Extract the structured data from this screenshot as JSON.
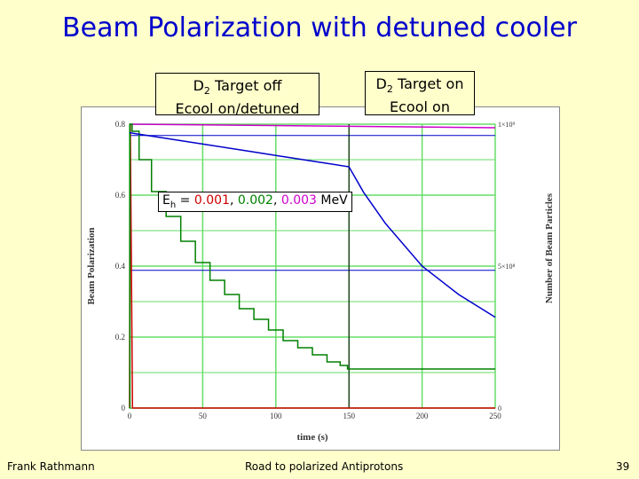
{
  "slide": {
    "title": "Beam Polarization with detuned cooler",
    "box_off_line1_pre": "D",
    "box_off_line1_sub": "2",
    "box_off_line1_post": " Target off",
    "box_off_line2": "Ecool on/detuned",
    "box_on_line1_pre": "D",
    "box_on_line1_sub": "2",
    "box_on_line1_post": " Target on",
    "box_on_line2": "Ecool on",
    "footer_left": "Frank Rathmann",
    "footer_center": "Road to polarized Antiprotons",
    "page_number": "39"
  },
  "chart_data": {
    "type": "line",
    "xlabel": "time (s)",
    "ylabel_left": "Beam Polarization",
    "ylabel_right": "Number of Beam Particles",
    "xlim": [
      0,
      250
    ],
    "ylim_left": [
      0,
      0.8
    ],
    "ylim_right": [
      0,
      1000000000
    ],
    "x_ticks": [
      "0",
      "50",
      "100",
      "150",
      "200",
      "250"
    ],
    "y_ticks_left": [
      "0",
      "0.2",
      "0.4",
      "0.6",
      "0.8"
    ],
    "y_ticks_right": [
      "0",
      "5×10⁸",
      "1×10⁹"
    ],
    "grid": true,
    "annotation": {
      "pre": "E",
      "sub": "h",
      "mid": " = ",
      "v1": "0.001",
      "sep1": ", ",
      "v2": "0.002",
      "sep2": ", ",
      "v3": "0.003",
      "unit": " MeV"
    },
    "colors": {
      "red": "#CC0000",
      "green": "#008000",
      "magenta": "#CC00CC",
      "blue": "#0000CC",
      "grid": "#66DD66"
    },
    "series": [
      {
        "axis": "left",
        "color": "#CC0000",
        "x": [
          0,
          0.5,
          2,
          250
        ],
        "y": [
          0,
          0.8,
          0,
          0
        ]
      },
      {
        "axis": "left",
        "color": "#CC00CC",
        "x": [
          0,
          250
        ],
        "y": [
          0.8,
          0.79
        ]
      },
      {
        "axis": "left",
        "color": "#008000",
        "x": [
          0,
          0.5,
          3,
          10,
          20,
          30,
          40,
          50,
          60,
          70,
          80,
          90,
          100,
          110,
          120,
          130,
          140,
          148,
          150,
          250
        ],
        "y": [
          0,
          0.8,
          0.78,
          0.7,
          0.61,
          0.54,
          0.47,
          0.41,
          0.36,
          0.32,
          0.28,
          0.25,
          0.22,
          0.19,
          0.17,
          0.15,
          0.13,
          0.12,
          0.11,
          0.11
        ]
      },
      {
        "axis": "right",
        "color": "#0000CC",
        "x": [
          0,
          25,
          50,
          75,
          100,
          125,
          150,
          160,
          175,
          200,
          225,
          250
        ],
        "y": [
          970000000,
          950000000,
          930000000,
          910000000,
          890000000,
          870000000,
          850000000,
          760000000,
          650000000,
          500000000,
          400000000,
          320000000
        ]
      }
    ],
    "hlines_right": [
      960000000,
      485000000
    ],
    "vline_x": 150
  }
}
